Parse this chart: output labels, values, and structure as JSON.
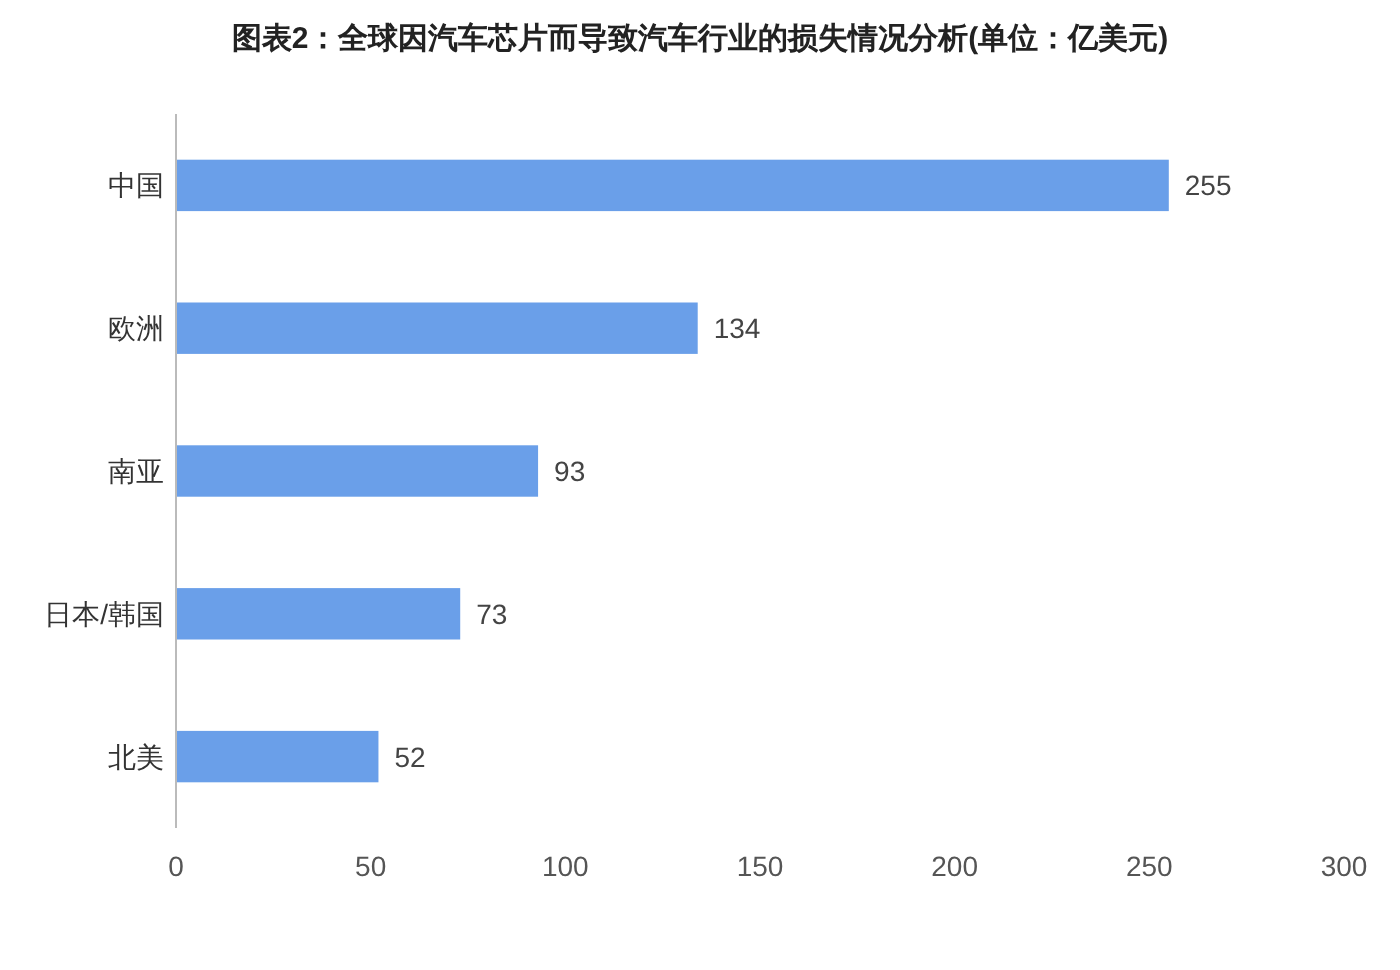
{
  "chart_data": {
    "type": "bar",
    "orientation": "horizontal",
    "title": "图表2：全球因汽车芯片而导致汽车行业的损失情况分析(单位：亿美元)",
    "categories": [
      "中国",
      "欧洲",
      "南亚",
      "日本/韩国",
      "北美"
    ],
    "values": [
      255,
      134,
      93,
      73,
      52
    ],
    "color": "#6a9fe9",
    "xlim": [
      0,
      300
    ],
    "xticks": [
      0,
      50,
      100,
      150,
      200,
      250,
      300
    ],
    "data_labels": true
  }
}
